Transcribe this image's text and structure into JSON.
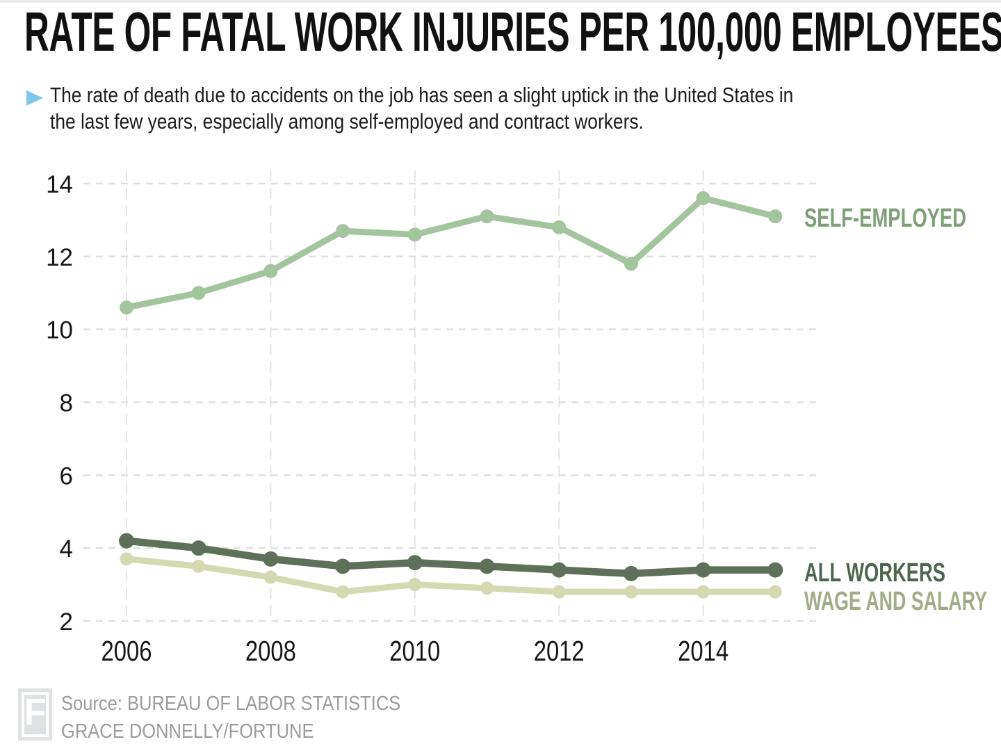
{
  "header": {
    "title": "RATE OF FATAL WORK INJURIES PER 100,000 EMPLOYEES",
    "subtitle_line1": "The rate of death due to accidents on the job has seen a slight uptick in the United States in",
    "subtitle_line2": "the last few years, especially among self-employed and contract workers.",
    "bullet_color": "#7dc8ea"
  },
  "chart_data": {
    "type": "line",
    "title": "RATE OF FATAL WORK INJURIES PER 100,000 EMPLOYEES",
    "x": [
      2006,
      2007,
      2008,
      2009,
      2010,
      2011,
      2012,
      2013,
      2014,
      2015
    ],
    "x_ticks": [
      2006,
      2008,
      2010,
      2012,
      2014
    ],
    "y_ticks": [
      2,
      4,
      6,
      8,
      10,
      12,
      14
    ],
    "ylim": [
      2,
      14
    ],
    "grid": true,
    "legend_position": "right of line ends",
    "series": [
      {
        "name": "SELF-EMPLOYED",
        "color": "#a3c59d",
        "label_color": "#7da077",
        "values": [
          10.6,
          11.0,
          11.6,
          12.7,
          12.6,
          13.1,
          12.8,
          11.8,
          13.6,
          13.1
        ]
      },
      {
        "name": "ALL WORKERS",
        "color": "#5c7158",
        "label_color": "#4d664f",
        "values": [
          4.2,
          4.0,
          3.7,
          3.5,
          3.6,
          3.5,
          3.4,
          3.3,
          3.4,
          3.4
        ]
      },
      {
        "name": "WAGE AND SALARY",
        "color": "#d5d9b2",
        "label_color": "#a2ac85",
        "values": [
          3.7,
          3.5,
          3.2,
          2.8,
          3.0,
          2.9,
          2.8,
          2.8,
          2.8,
          2.8
        ]
      }
    ]
  },
  "footer": {
    "logo_letter": "F",
    "source": "Source: BUREAU OF LABOR STATISTICS",
    "credit": "GRACE DONNELLY/FORTUNE"
  }
}
